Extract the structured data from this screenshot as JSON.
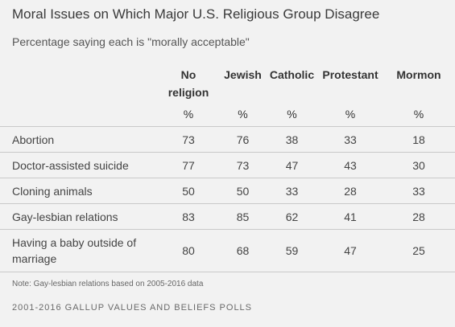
{
  "title": "Moral Issues on Which Major U.S. Religious Group Disagree",
  "subtitle": "Percentage saying each is \"morally acceptable\"",
  "note": "Note: Gay-lesbian relations based on 2005-2016 data",
  "source": "2001-2016 GALLUP VALUES AND BELIEFS POLLS",
  "chart_data": {
    "type": "table",
    "columns": [
      {
        "line1": "No",
        "line2": "religion",
        "unit": "%"
      },
      {
        "line1": "Jewish",
        "line2": "",
        "unit": "%"
      },
      {
        "line1": "Catholic",
        "line2": "",
        "unit": "%"
      },
      {
        "line1": "Protestant",
        "line2": "",
        "unit": "%"
      },
      {
        "line1": "Mormon",
        "line2": "",
        "unit": "%"
      }
    ],
    "rows": [
      {
        "label": "Abortion",
        "values": [
          "73",
          "76",
          "38",
          "33",
          "18"
        ]
      },
      {
        "label": "Doctor-assisted suicide",
        "values": [
          "77",
          "73",
          "47",
          "43",
          "30"
        ]
      },
      {
        "label": "Cloning animals",
        "values": [
          "50",
          "50",
          "33",
          "28",
          "33"
        ]
      },
      {
        "label": "Gay-lesbian relations",
        "values": [
          "83",
          "85",
          "62",
          "41",
          "28"
        ]
      },
      {
        "label": "Having a baby outside of marriage",
        "values": [
          "80",
          "68",
          "59",
          "47",
          "25"
        ]
      }
    ]
  }
}
